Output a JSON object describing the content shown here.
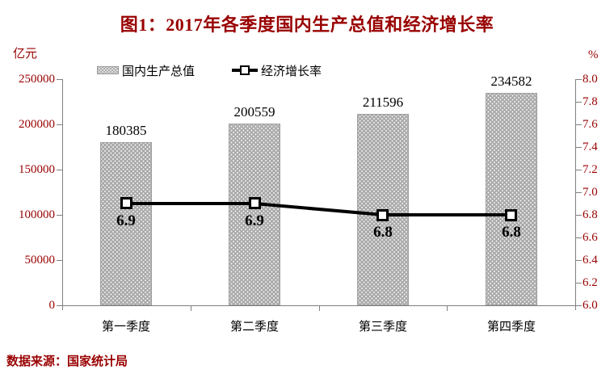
{
  "title": "图1：2017年各季度国内生产总值和经济增长率",
  "source_note": "数据来源：国家统计局",
  "colors": {
    "accent_text": "#990000",
    "data_label_text": "#000000",
    "bar_fill": "#a9a9a9",
    "bar_dot": "#f4f4f4",
    "line": "#000000",
    "marker_fill": "#ffffff",
    "axis": "#808080",
    "background": "#ffffff"
  },
  "chart_data": {
    "type": "bar",
    "subtype": "combo-bar-line-dual-axis",
    "title": "图1：2017年各季度国内生产总值和经济增长率",
    "categories": [
      "第一季度",
      "第二季度",
      "第三季度",
      "第四季度"
    ],
    "series": [
      {
        "name": "国内生产总值",
        "type": "bar",
        "axis": "left",
        "unit": "亿元",
        "values": [
          180385,
          200559,
          211596,
          234582
        ],
        "value_labels": [
          "180385",
          "200559",
          "211596",
          "234582"
        ]
      },
      {
        "name": "经济增长率",
        "type": "line",
        "axis": "right",
        "unit": "%",
        "values": [
          6.9,
          6.9,
          6.8,
          6.8
        ],
        "value_labels": [
          "6.9",
          "6.9",
          "6.8",
          "6.8"
        ]
      }
    ],
    "left_axis": {
      "label": "亿元",
      "min": 0,
      "max": 250000,
      "step": 50000,
      "tick_labels": [
        "250000",
        "200000",
        "150000",
        "100000",
        "50000",
        "0"
      ]
    },
    "right_axis": {
      "label": "%",
      "min": 6.0,
      "max": 8.0,
      "step": 0.2,
      "tick_labels": [
        "8.0",
        "7.8",
        "7.6",
        "7.4",
        "7.2",
        "7.0",
        "6.8",
        "6.6",
        "6.4",
        "6.2",
        "6.0"
      ]
    },
    "legend": {
      "position": "top",
      "items": [
        "国内生产总值",
        "经济增长率"
      ]
    },
    "grid": false
  }
}
